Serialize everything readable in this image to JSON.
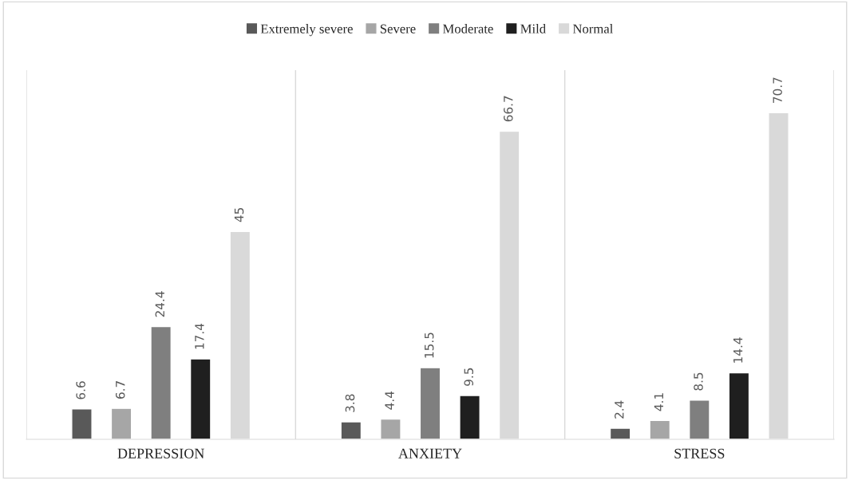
{
  "chart_data": {
    "type": "bar",
    "categories": [
      "DEPRESSION",
      "ANXIETY",
      "STRESS"
    ],
    "series": [
      {
        "name": "Extremely severe",
        "color": "#595959",
        "values": [
          6.6,
          3.8,
          2.4
        ]
      },
      {
        "name": "Severe",
        "color": "#a6a6a6",
        "values": [
          6.7,
          4.4,
          4.1
        ]
      },
      {
        "name": "Moderate",
        "color": "#7f7f7f",
        "values": [
          24.4,
          15.5,
          8.5
        ]
      },
      {
        "name": "Mild",
        "color": "#1f1f1f",
        "values": [
          17.4,
          9.5,
          14.4
        ]
      },
      {
        "name": "Normal",
        "color": "#d9d9d9",
        "values": [
          45,
          66.7,
          70.7
        ]
      }
    ],
    "data_labels": true,
    "legend": "top",
    "grid": false
  }
}
